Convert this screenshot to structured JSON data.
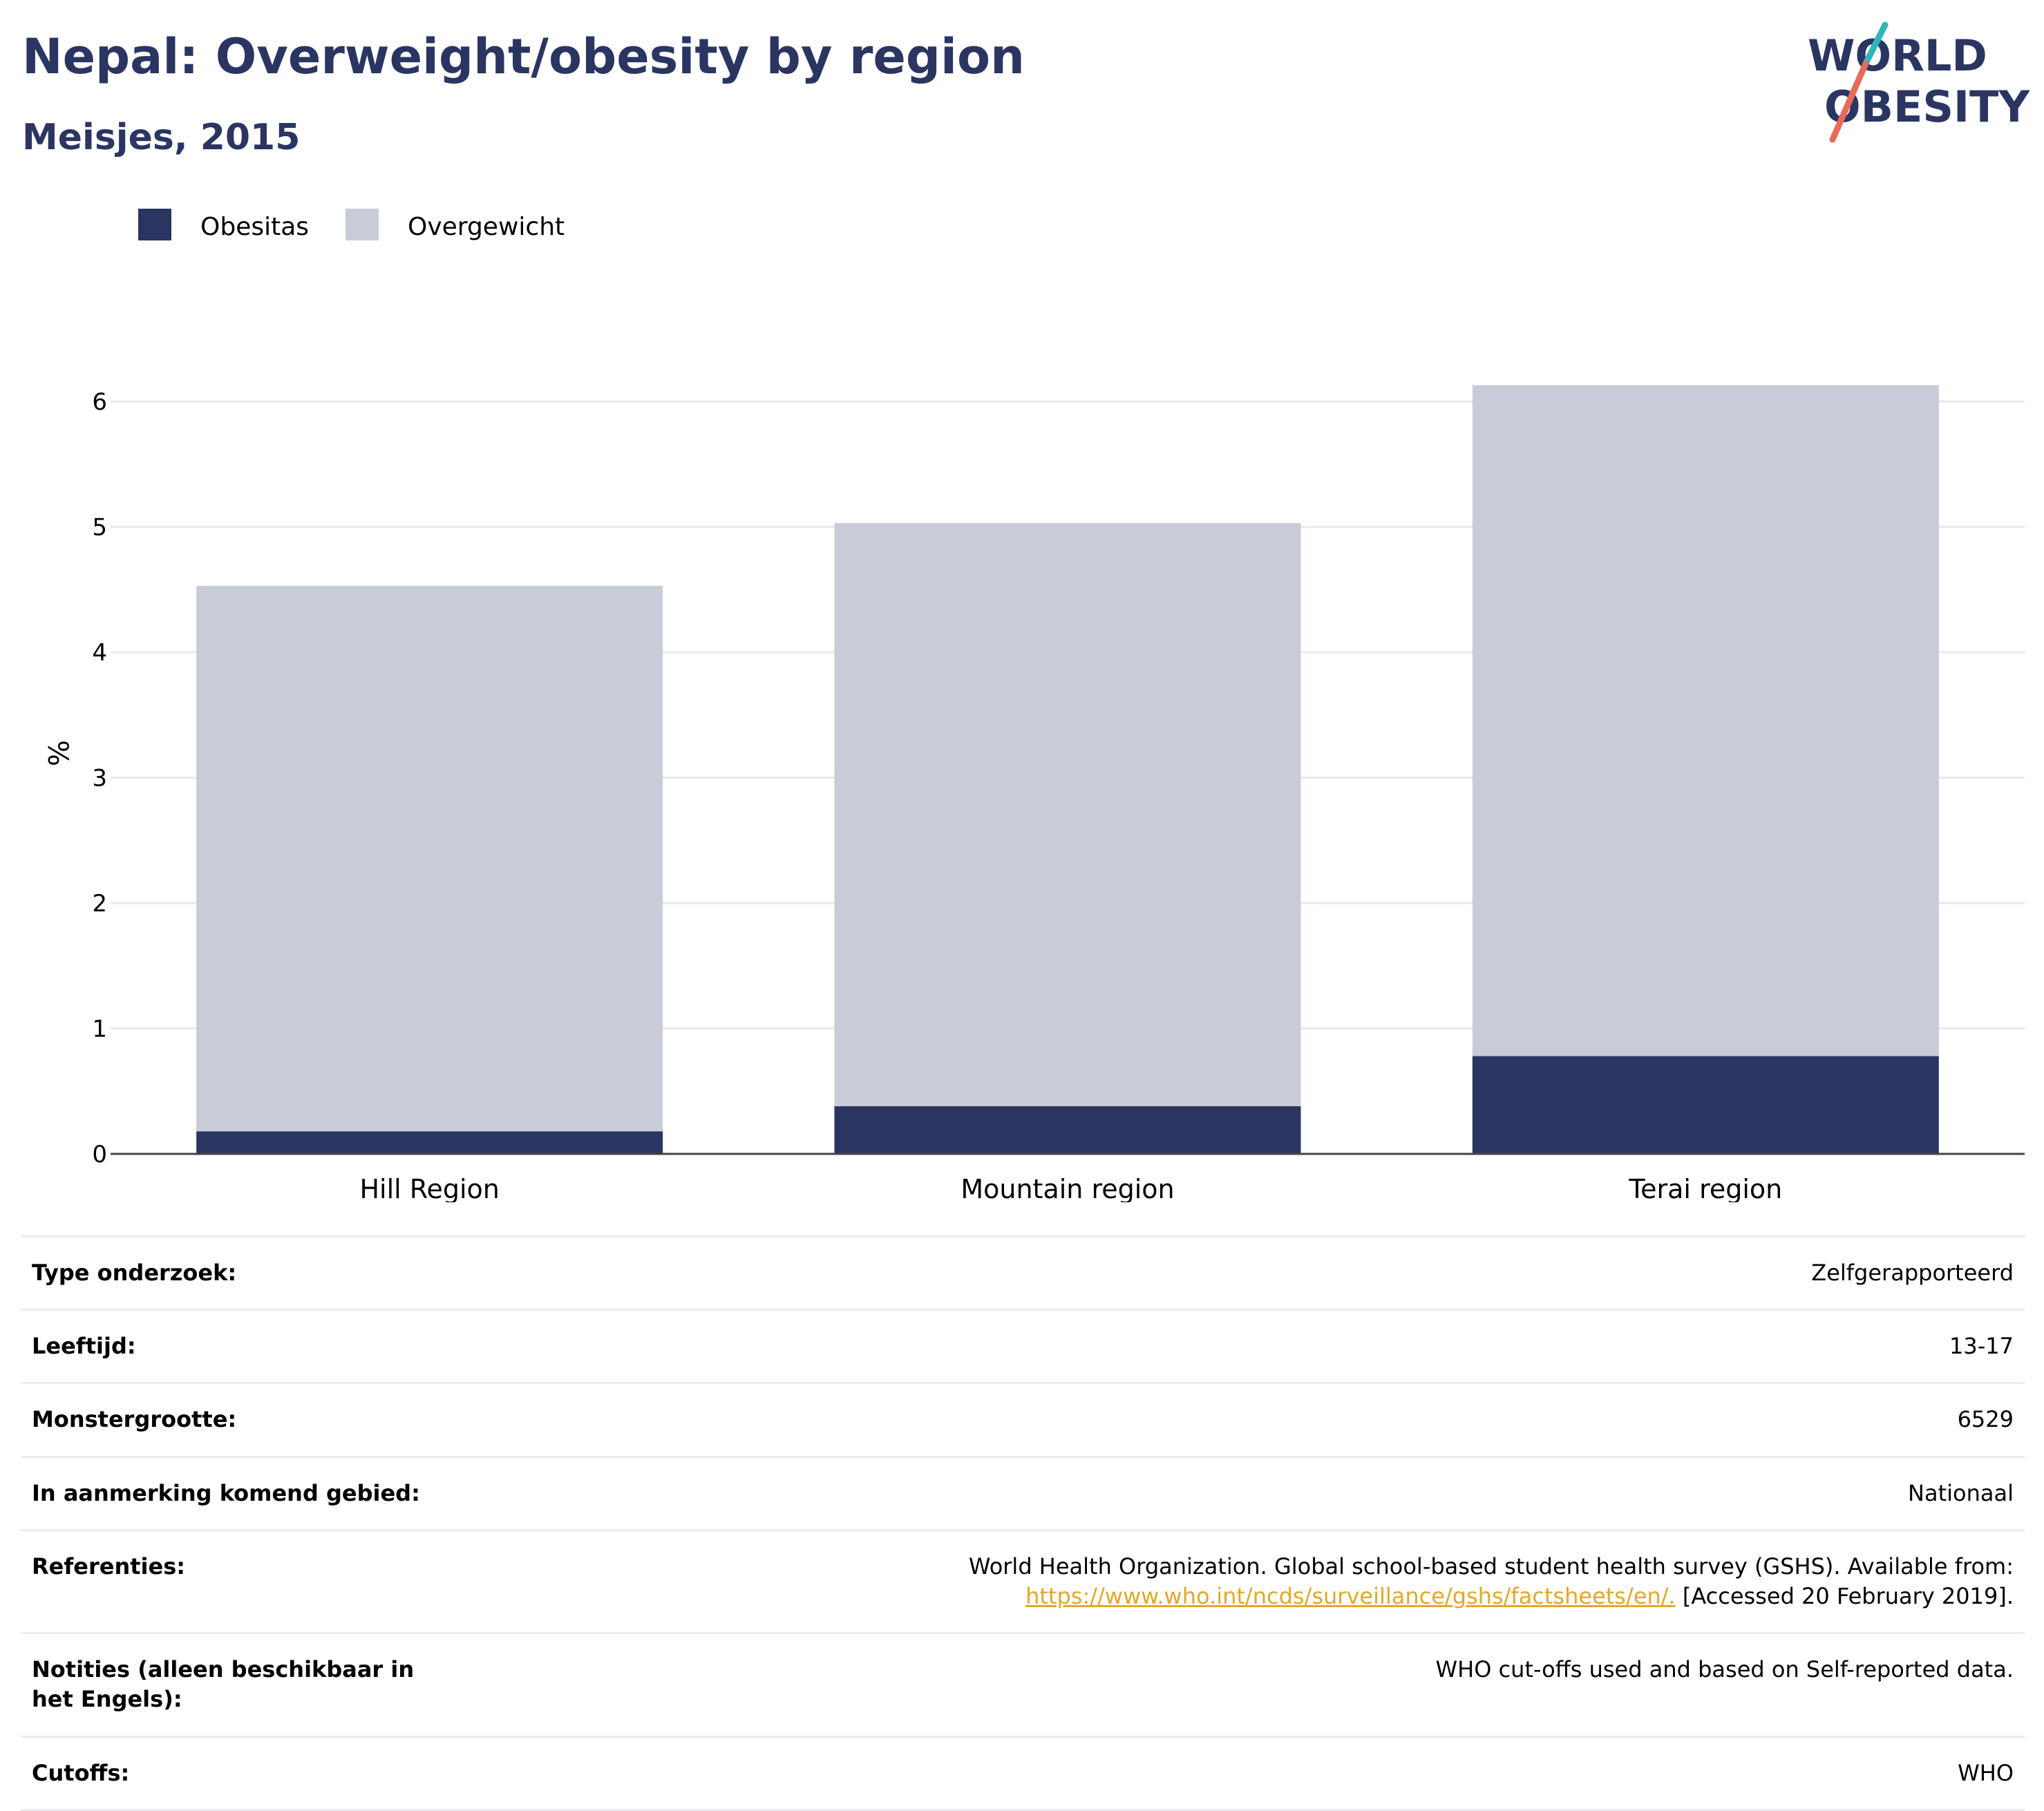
{
  "header": {
    "title": "Nepal: Overweight/obesity by region",
    "subtitle": "Meisjes, 2015"
  },
  "logo": {
    "line1": "WORLD",
    "line2": "OBESITY"
  },
  "colors": {
    "obesity": "#2a3562",
    "overweight": "#c9ccd8",
    "title": "#2a3562",
    "link": "#e2a829"
  },
  "chart_data": {
    "type": "bar",
    "stacked": true,
    "categories": [
      "Hill Region",
      "Mountain region",
      "Terai region"
    ],
    "series": [
      {
        "name": "Obesitas",
        "values": [
          0.18,
          0.38,
          0.78
        ]
      },
      {
        "name": "Overgewicht",
        "values": [
          4.35,
          4.65,
          5.35
        ]
      }
    ],
    "totals": [
      4.53,
      5.03,
      6.13
    ],
    "ylabel": "%",
    "xlabel": "",
    "ylim": [
      0,
      6.6
    ],
    "yticks": [
      0,
      1,
      2,
      3,
      4,
      5,
      6
    ],
    "grid": true,
    "legend_position": "top-left"
  },
  "info": {
    "rows": [
      {
        "label": "Type onderzoek:",
        "value": "Zelfgerapporteerd"
      },
      {
        "label": "Leeftijd:",
        "value": "13-17"
      },
      {
        "label": "Monstergrootte:",
        "value": "6529"
      },
      {
        "label": "In aanmerking komend gebied:",
        "value": "Nationaal"
      }
    ],
    "ref_label": "Referenties:",
    "ref_text": "World Health Organization. Global school-based student health survey (GSHS). Available from:",
    "ref_link": "https://www.who.int/ncds/surveillance/gshs/factsheets/en/.",
    "ref_suffix": " [Accessed 20 February 2019].",
    "notes_label": "Notities (alleen beschikbaar in het Engels):",
    "notes_value": "WHO cut-offs used and based on Self-reported data.",
    "cutoffs_label": "Cutoffs:",
    "cutoffs_value": "WHO"
  }
}
